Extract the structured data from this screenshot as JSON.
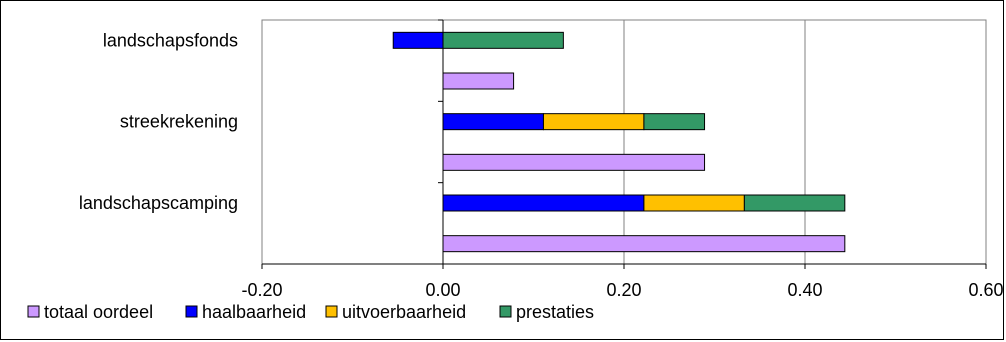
{
  "chart_data": {
    "type": "bar",
    "orientation": "horizontal",
    "stacked": true,
    "xlim": [
      -0.2,
      0.6
    ],
    "xticks": [
      "-0.20",
      "0.00",
      "0.20",
      "0.40",
      "0.60"
    ],
    "xtick_values": [
      -0.2,
      0.0,
      0.2,
      0.4,
      0.6
    ],
    "grid": "vertical",
    "legend_position": "bottom",
    "categories": [
      "landschapsfonds",
      "streekrekening",
      "landschapscamping"
    ],
    "series": [
      {
        "name": "totaal oordeel",
        "color": "#cc99ff"
      },
      {
        "name": "haalbaarheid",
        "color": "#0000ff"
      },
      {
        "name": "uitvoerbaarheid",
        "color": "#ffc000"
      },
      {
        "name": "prestaties",
        "color": "#339966"
      }
    ],
    "bars": [
      {
        "category": "landschapsfonds",
        "segments": {
          "haalbaarheid": -0.055,
          "prestaties": 0.133
        }
      },
      {
        "category": "landschapsfonds",
        "segments": {
          "totaal oordeel": 0.078
        }
      },
      {
        "category": "streekrekening",
        "segments": {
          "haalbaarheid": 0.111,
          "uitvoerbaarheid": 0.111,
          "prestaties": 0.067
        }
      },
      {
        "category": "streekrekening",
        "segments": {
          "totaal oordeel": 0.289
        }
      },
      {
        "category": "landschapscamping",
        "segments": {
          "haalbaarheid": 0.222,
          "uitvoerbaarheid": 0.111,
          "prestaties": 0.111
        }
      },
      {
        "category": "landschapscamping",
        "segments": {
          "totaal oordeel": 0.444
        }
      }
    ]
  }
}
